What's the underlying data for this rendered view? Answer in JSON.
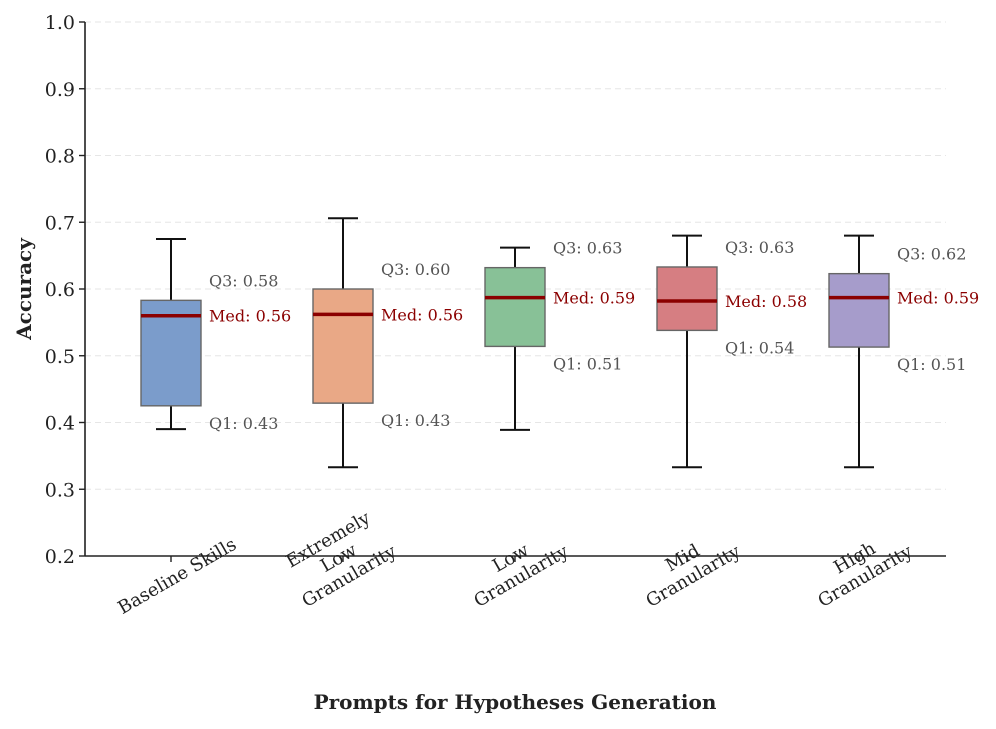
{
  "chart_data": {
    "type": "box",
    "xlabel": "Prompts for Hypotheses Generation",
    "ylabel": "Accuracy",
    "ylim": [
      0.2,
      1.0
    ],
    "yticks": [
      "0.2",
      "0.3",
      "0.4",
      "0.5",
      "0.6",
      "0.7",
      "0.8",
      "0.9",
      "1.0"
    ],
    "grid": "horizontal dashed",
    "categories": [
      {
        "label_lines": [
          "Baseline Skills"
        ],
        "color": "#7b9ccb",
        "whislo": 0.39,
        "q1": 0.425,
        "med": 0.56,
        "q3": 0.583,
        "whishi": 0.675,
        "q3_label": "Q3: 0.58",
        "med_label": "Med: 0.56",
        "q1_label": "Q1: 0.43"
      },
      {
        "label_lines": [
          "Extremely",
          "Low",
          "Granularity"
        ],
        "color": "#e9a886",
        "whislo": 0.333,
        "q1": 0.429,
        "med": 0.562,
        "q3": 0.6,
        "whishi": 0.706,
        "q3_label": "Q3: 0.60",
        "med_label": "Med: 0.56",
        "q1_label": "Q1: 0.43"
      },
      {
        "label_lines": [
          "Low",
          "Granularity"
        ],
        "color": "#88c197",
        "whislo": 0.389,
        "q1": 0.514,
        "med": 0.587,
        "q3": 0.632,
        "whishi": 0.662,
        "q3_label": "Q3: 0.63",
        "med_label": "Med: 0.59",
        "q1_label": "Q1: 0.51"
      },
      {
        "label_lines": [
          "Mid",
          "Granularity"
        ],
        "color": "#d67e82",
        "whislo": 0.333,
        "q1": 0.538,
        "med": 0.582,
        "q3": 0.633,
        "whishi": 0.68,
        "q3_label": "Q3: 0.63",
        "med_label": "Med: 0.58",
        "q1_label": "Q1: 0.54"
      },
      {
        "label_lines": [
          "High",
          "Granularity"
        ],
        "color": "#a69ccb",
        "whislo": 0.333,
        "q1": 0.513,
        "med": 0.587,
        "q3": 0.623,
        "whishi": 0.68,
        "q3_label": "Q3: 0.62",
        "med_label": "Med: 0.59",
        "q1_label": "Q1: 0.51"
      }
    ],
    "colors": {
      "median_line": "#8b0000",
      "whisker": "#111111",
      "box_edge": "#666666",
      "grid": "#e6e6e6"
    }
  }
}
